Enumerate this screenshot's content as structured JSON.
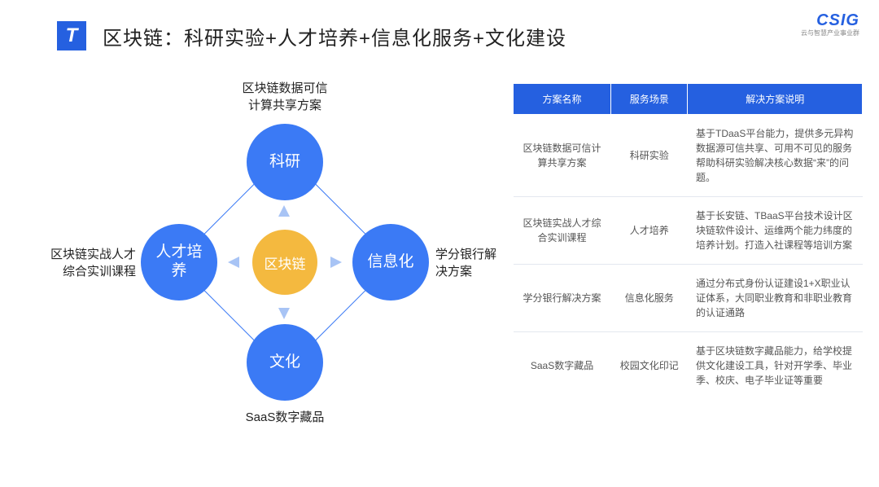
{
  "header": {
    "logo_glyph": "T",
    "title": "区块链：科研实验+人才培养+信息化服务+文化建设"
  },
  "brand": {
    "main": "CSIG",
    "sub": "云与智慧产业事业群",
    "color": "#2560e0"
  },
  "diagram": {
    "center": {
      "text": "区块链",
      "color": "#f4b93f"
    },
    "node_color": "#3b7af5",
    "diamond_border": "#3b7af5",
    "arrow_color": "#a8c4f5",
    "nodes": {
      "top": {
        "text": "科研",
        "label": "区块链数据可信\n计算共享方案"
      },
      "right": {
        "text": "信息化",
        "label": "学分银行解\n决方案"
      },
      "bottom": {
        "text": "文化",
        "label": "SaaS数字藏品"
      },
      "left": {
        "text": "人才培\n养",
        "label": "区块链实战人才\n综合实训课程"
      }
    }
  },
  "table": {
    "header_bg": "#2560e0",
    "headers": [
      "方案名称",
      "服务场景",
      "解决方案说明"
    ],
    "rows": [
      [
        "区块链数据可信计算共享方案",
        "科研实验",
        "基于TDaaS平台能力，提供多元异构数据源可信共享、可用不可见的服务帮助科研实验解决核心数据“来”的问题。"
      ],
      [
        "区块链实战人才综合实训课程",
        "人才培养",
        "基于长安链、TBaaS平台技术设计区块链软件设计、运维两个能力纬度的培养计划。打造入社课程等培训方案"
      ],
      [
        "学分银行解决方案",
        "信息化服务",
        "通过分布式身份认证建设1+X职业认证体系，大同职业教育和非职业教育的认证通路"
      ],
      [
        "SaaS数字藏品",
        "校园文化印记",
        "基于区块链数字藏品能力，给学校提供文化建设工具，针对开学季、毕业季、校庆、电子毕业证等重要"
      ]
    ]
  }
}
